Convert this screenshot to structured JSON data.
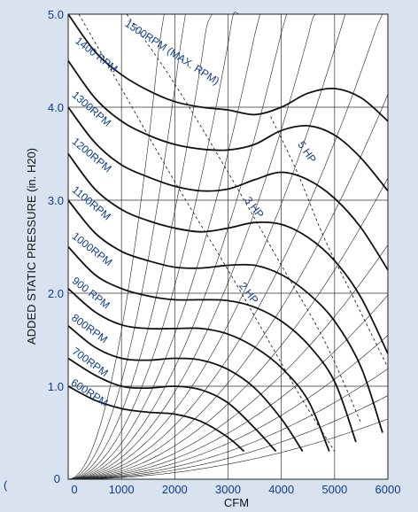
{
  "chart_data": {
    "type": "line",
    "title": "",
    "xlabel": "CFM",
    "ylabel": "ADDED STATIC PRESSURE (in. H20)",
    "xlim": [
      0,
      6000
    ],
    "ylim": [
      0,
      5.0
    ],
    "grid": true,
    "x_ticks": [
      "0",
      "1000",
      "2000",
      "3000",
      "4000",
      "5000",
      "6000"
    ],
    "y_ticks": [
      "0",
      "1.0",
      "2.0",
      "3.0",
      "4.0",
      "5.0"
    ],
    "stray_mark": "(",
    "rpm_curves": [
      {
        "name": "600RPM",
        "x": [
          0,
          500,
          1000,
          1500,
          2000,
          2500,
          3000,
          3300
        ],
        "y": [
          1.0,
          0.85,
          0.76,
          0.72,
          0.7,
          0.62,
          0.45,
          0.3
        ]
      },
      {
        "name": "700RPM",
        "x": [
          0,
          500,
          1000,
          1500,
          2000,
          2500,
          3000,
          3500,
          3900
        ],
        "y": [
          1.3,
          1.12,
          1.0,
          0.98,
          1.0,
          0.96,
          0.82,
          0.55,
          0.3
        ]
      },
      {
        "name": "800RPM",
        "x": [
          0,
          500,
          1000,
          1500,
          2000,
          2500,
          3000,
          3500,
          4000,
          4400
        ],
        "y": [
          1.65,
          1.42,
          1.3,
          1.28,
          1.3,
          1.28,
          1.18,
          0.98,
          0.65,
          0.3
        ]
      },
      {
        "name": "900 RPM",
        "x": [
          0,
          500,
          1000,
          1500,
          2000,
          2500,
          3000,
          3500,
          4000,
          4500,
          4900
        ],
        "y": [
          2.05,
          1.8,
          1.66,
          1.62,
          1.62,
          1.62,
          1.56,
          1.42,
          1.2,
          0.85,
          0.3
        ]
      },
      {
        "name": "1000RPM",
        "x": [
          0,
          500,
          1000,
          1500,
          2000,
          2500,
          3000,
          3500,
          4000,
          4500,
          5000,
          5400
        ],
        "y": [
          2.5,
          2.2,
          2.05,
          1.97,
          1.93,
          1.93,
          1.92,
          1.85,
          1.7,
          1.45,
          1.05,
          0.4
        ]
      },
      {
        "name": "1100RPM",
        "x": [
          0,
          500,
          1000,
          1500,
          2000,
          2500,
          3000,
          3500,
          4000,
          4500,
          5000,
          5500,
          5900
        ],
        "y": [
          3.0,
          2.65,
          2.45,
          2.35,
          2.28,
          2.27,
          2.3,
          2.3,
          2.2,
          2.0,
          1.7,
          1.2,
          0.5
        ]
      },
      {
        "name": "1200RPM",
        "x": [
          0,
          500,
          1000,
          1500,
          2000,
          2500,
          3000,
          3500,
          4000,
          4500,
          5000,
          5500,
          6000
        ],
        "y": [
          3.5,
          3.12,
          2.9,
          2.78,
          2.7,
          2.66,
          2.7,
          2.76,
          2.74,
          2.6,
          2.35,
          1.95,
          1.35
        ]
      },
      {
        "name": "1300RPM",
        "x": [
          0,
          500,
          1000,
          1500,
          2000,
          2500,
          3000,
          3500,
          4000,
          4500,
          5000,
          5500,
          6000
        ],
        "y": [
          4.0,
          3.62,
          3.38,
          3.25,
          3.15,
          3.1,
          3.12,
          3.22,
          3.3,
          3.22,
          3.02,
          2.7,
          2.25
        ]
      },
      {
        "name": "1400 RPM",
        "x": [
          0,
          500,
          1000,
          1500,
          2000,
          2500,
          3000,
          3500,
          4000,
          4500,
          5000,
          5500,
          6000
        ],
        "y": [
          4.5,
          4.1,
          3.85,
          3.7,
          3.6,
          3.55,
          3.54,
          3.6,
          3.75,
          3.8,
          3.7,
          3.45,
          3.1
        ]
      },
      {
        "name": "1500RPM (MAX. RPM)",
        "x": [
          0,
          500,
          1000,
          1500,
          2000,
          2500,
          3000,
          3500,
          4000,
          4500,
          5000,
          5500,
          6000
        ],
        "y": [
          5.0,
          4.6,
          4.35,
          4.18,
          4.06,
          4.0,
          3.97,
          3.92,
          4.0,
          4.15,
          4.2,
          4.1,
          3.85
        ]
      }
    ],
    "hp_lines": [
      {
        "name": "2 HP",
        "x": [
          200,
          1000,
          2000,
          3000,
          3800,
          4400,
          5000
        ],
        "y": [
          5.0,
          4.2,
          3.2,
          2.25,
          1.45,
          0.85,
          0.3
        ]
      },
      {
        "name": "3 HP",
        "x": [
          1100,
          2000,
          3000,
          4000,
          4800,
          5500
        ],
        "y": [
          5.0,
          4.25,
          3.3,
          2.3,
          1.5,
          0.6
        ]
      },
      {
        "name": "5 HP",
        "x": [
          3800,
          4300,
          4800,
          5400,
          6000
        ],
        "y": [
          3.9,
          3.3,
          2.6,
          1.9,
          1.2
        ]
      }
    ],
    "system_curve_k": [
      1.6,
      1.05,
      0.72,
      0.52,
      0.39,
      0.3,
      0.235,
      0.185,
      0.145,
      0.115,
      0.09,
      0.07,
      0.055,
      0.043,
      0.033,
      0.025,
      0.018
    ]
  }
}
